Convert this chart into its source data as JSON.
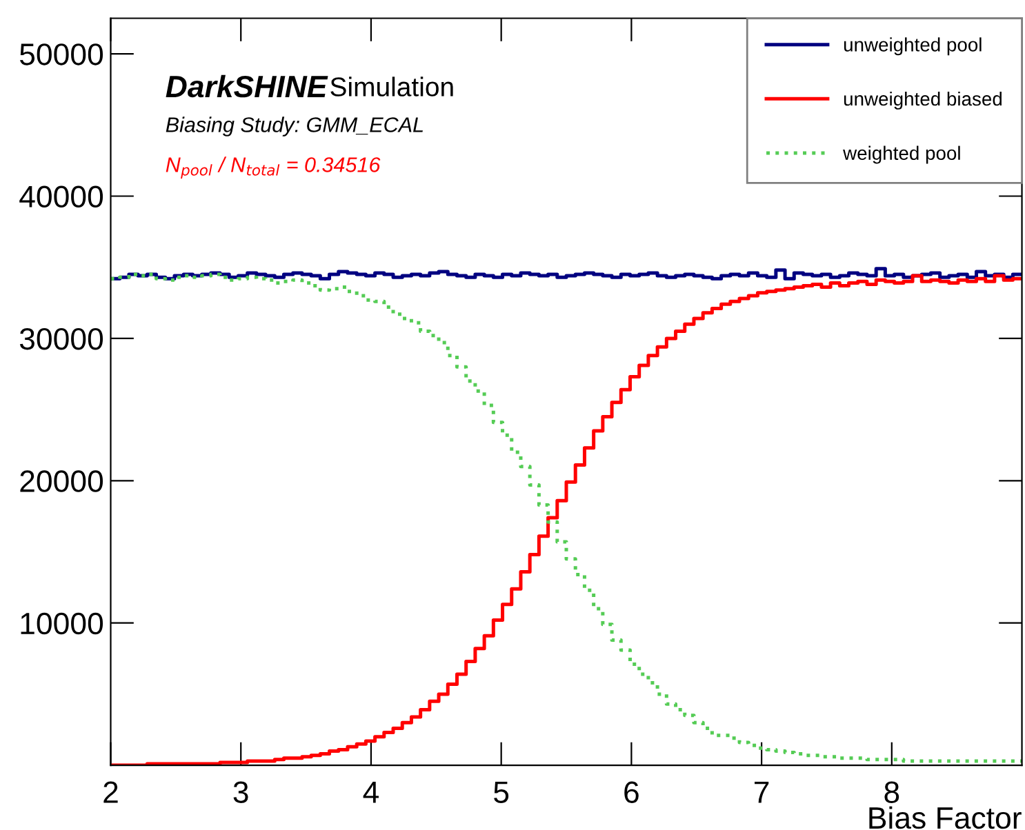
{
  "chart_data": {
    "type": "histogram",
    "xlabel": "Bias Factor",
    "annotations": [
      "DarkSHINE",
      "Simulation",
      "Biasing Study: GMM_ECAL",
      "N$_{pool}$ / N$_{total}$ = 0.34516"
    ],
    "xlim": [
      2,
      9
    ],
    "ylim": [
      0,
      52500
    ],
    "xticks": [
      2,
      3,
      4,
      5,
      6,
      7,
      8
    ],
    "yticks": [
      10000,
      20000,
      30000,
      40000,
      50000
    ],
    "grid": false,
    "legend": "top right",
    "bins": [
      2,
      2.07,
      2.14,
      2.21,
      2.28,
      2.35,
      2.42,
      2.49,
      2.56,
      2.63,
      2.7,
      2.77,
      2.84,
      2.91,
      2.98,
      3.05,
      3.12,
      3.19,
      3.26,
      3.33,
      3.4,
      3.47,
      3.54,
      3.61,
      3.68,
      3.75,
      3.82,
      3.89,
      3.96,
      4.03,
      4.1,
      4.17,
      4.24,
      4.31,
      4.38,
      4.45,
      4.52,
      4.59,
      4.66,
      4.73,
      4.8,
      4.87,
      4.94,
      5.01,
      5.08,
      5.15,
      5.22,
      5.29,
      5.36,
      5.43,
      5.5,
      5.57,
      5.64,
      5.71,
      5.78,
      5.85,
      5.92,
      5.99,
      6.06,
      6.13,
      6.2,
      6.27,
      6.34,
      6.41,
      6.48,
      6.55,
      6.62,
      6.69,
      6.76,
      6.83,
      6.9,
      6.97,
      7.04,
      7.11,
      7.18,
      7.25,
      7.32,
      7.39,
      7.46,
      7.53,
      7.6,
      7.67,
      7.74,
      7.81,
      7.88,
      7.95,
      8.02,
      8.09,
      8.16,
      8.23,
      8.3,
      8.37,
      8.44,
      8.51,
      8.58,
      8.65,
      8.72,
      8.79,
      8.86,
      8.93,
      9
    ],
    "series": [
      {
        "name": "unweighted pool",
        "color": "#000080",
        "line_style": "solid",
        "values": [
          34200,
          34300,
          34500,
          34400,
          34500,
          34300,
          34200,
          34400,
          34500,
          34400,
          34500,
          34600,
          34500,
          34300,
          34400,
          34600,
          34500,
          34400,
          34300,
          34500,
          34600,
          34500,
          34400,
          34200,
          34500,
          34700,
          34600,
          34500,
          34400,
          34600,
          34500,
          34300,
          34400,
          34500,
          34400,
          34600,
          34700,
          34500,
          34400,
          34300,
          34500,
          34400,
          34300,
          34500,
          34400,
          34600,
          34500,
          34400,
          34500,
          34300,
          34400,
          34500,
          34600,
          34500,
          34400,
          34300,
          34500,
          34400,
          34500,
          34600,
          34400,
          34300,
          34400,
          34500,
          34400,
          34300,
          34200,
          34400,
          34500,
          34400,
          34600,
          34400,
          34300,
          34800,
          34200,
          34600,
          34500,
          34400,
          34500,
          34300,
          34400,
          34600,
          34500,
          34400,
          34900,
          34400,
          34500,
          34300,
          34400,
          34500,
          34600,
          34300,
          34400,
          34500,
          34300,
          34700,
          34400,
          34500,
          34300,
          34500
        ]
      },
      {
        "name": "unweighted biased",
        "color": "#ff0000",
        "line_style": "solid",
        "values": [
          0,
          0,
          0,
          0,
          100,
          100,
          100,
          100,
          100,
          100,
          100,
          100,
          200,
          200,
          200,
          300,
          300,
          300,
          400,
          500,
          500,
          600,
          700,
          800,
          1000,
          1100,
          1300,
          1500,
          1700,
          2000,
          2300,
          2600,
          3000,
          3400,
          3900,
          4500,
          5000,
          5700,
          6400,
          7300,
          8200,
          9100,
          10200,
          11300,
          12400,
          13600,
          14800,
          16100,
          17400,
          18600,
          19900,
          21100,
          22300,
          23500,
          24500,
          25500,
          26400,
          27300,
          28100,
          28800,
          29400,
          30000,
          30500,
          31000,
          31400,
          31800,
          32100,
          32400,
          32600,
          32800,
          33000,
          33200,
          33300,
          33400,
          33500,
          33600,
          33700,
          33800,
          33600,
          33900,
          33700,
          33900,
          34000,
          33800,
          34100,
          34000,
          33900,
          34000,
          34400,
          34000,
          34100,
          34000,
          33900,
          34100,
          34000,
          34200,
          34000,
          34400,
          34100,
          34200
        ]
      },
      {
        "name": "weighted pool",
        "color": "#55cc55",
        "line_style": "dotted",
        "values": [
          34200,
          34300,
          34500,
          34400,
          34500,
          34200,
          34100,
          34300,
          34400,
          34300,
          34400,
          34500,
          34300,
          34100,
          34200,
          34300,
          34200,
          34100,
          33900,
          34000,
          34100,
          33900,
          33700,
          33400,
          33500,
          33600,
          33300,
          33000,
          32700,
          32600,
          32200,
          31700,
          31400,
          31100,
          30500,
          30200,
          29700,
          28800,
          28000,
          27000,
          26300,
          25300,
          24100,
          23200,
          22000,
          21000,
          19700,
          18300,
          17100,
          15700,
          14500,
          13400,
          12300,
          11000,
          9900,
          8800,
          8100,
          7100,
          6400,
          5800,
          5000,
          4300,
          3900,
          3500,
          3000,
          2600,
          2100,
          2100,
          1900,
          1600,
          1400,
          1200,
          1100,
          1000,
          900,
          800,
          700,
          700,
          600,
          600,
          500,
          500,
          500,
          400,
          400,
          400,
          400,
          300,
          300,
          300,
          300,
          300,
          300,
          300,
          300,
          300,
          300,
          300,
          300,
          300
        ]
      }
    ]
  }
}
